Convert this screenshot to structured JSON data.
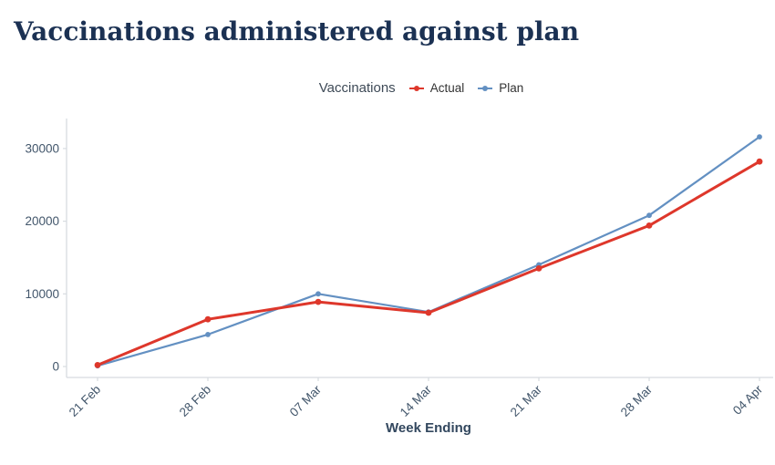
{
  "title": {
    "text": "Vaccinations administered against plan",
    "color": "#1b3153"
  },
  "legend": {
    "title": "Vaccinations",
    "items": [
      {
        "label": "Actual",
        "color": "#de372b"
      },
      {
        "label": "Plan",
        "color": "#6390c2"
      }
    ]
  },
  "chart_data": {
    "type": "line",
    "title": "Vaccinations administered against plan",
    "categories": [
      "21 Feb",
      "28 Feb",
      "07 Mar",
      "14 Mar",
      "21 Mar",
      "28 Mar",
      "04 Apr"
    ],
    "series": [
      {
        "name": "Actual",
        "color": "#de372b",
        "marker": "circle",
        "values": [
          200,
          6500,
          8900,
          7400,
          13500,
          19400,
          28200
        ]
      },
      {
        "name": "Plan",
        "color": "#6390c2",
        "marker": "circle",
        "values": [
          100,
          4400,
          10000,
          7500,
          14000,
          20800,
          31600
        ]
      }
    ],
    "xlabel": "Week Ending",
    "ylabel": "",
    "yticks": [
      0,
      10000,
      20000,
      30000
    ],
    "ylim": [
      0,
      34000
    ],
    "grid": false,
    "legend_position": "top-center",
    "legend_title": "Vaccinations",
    "x_tick_rotation": -45
  },
  "axes_style": {
    "axis_line_color": "#d7dbe0",
    "tick_label_color": "#42566b",
    "xlabel_color": "#32475e"
  }
}
